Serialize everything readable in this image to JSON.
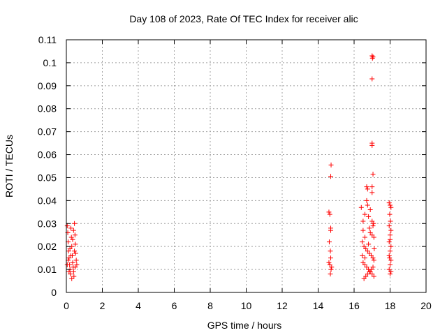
{
  "chart_data": {
    "type": "scatter",
    "title": "Day 108 of 2023, Rate Of TEC Index for receiver alic",
    "xlabel": "GPS time / hours",
    "ylabel": "ROTI / TECUs",
    "xlim": [
      0,
      20
    ],
    "ylim": [
      0,
      0.11
    ],
    "xticks": [
      0,
      2,
      4,
      6,
      8,
      10,
      12,
      14,
      16,
      18,
      20
    ],
    "xtick_labels": [
      "0",
      "2",
      "4",
      "6",
      "8",
      "10",
      "12",
      "14",
      "16",
      "18",
      "20"
    ],
    "yticks": [
      0,
      0.01,
      0.02,
      0.03,
      0.04,
      0.05,
      0.06,
      0.07,
      0.08,
      0.09,
      0.1,
      0.11
    ],
    "ytick_labels": [
      "0",
      "0.01",
      "0.02",
      "0.03",
      "0.04",
      "0.05",
      "0.06",
      "0.07",
      "0.08",
      "0.09",
      "0.1",
      "0.11"
    ],
    "grid": true,
    "marker": "+",
    "color": "#ff0000",
    "points": [
      [
        0.05,
        0.029
      ],
      [
        0.08,
        0.026
      ],
      [
        0.1,
        0.022
      ],
      [
        0.12,
        0.018
      ],
      [
        0.15,
        0.015
      ],
      [
        0.18,
        0.012
      ],
      [
        0.2,
        0.01
      ],
      [
        0.22,
        0.008
      ],
      [
        0.25,
        0.028
      ],
      [
        0.28,
        0.024
      ],
      [
        0.3,
        0.02
      ],
      [
        0.33,
        0.016
      ],
      [
        0.35,
        0.013
      ],
      [
        0.38,
        0.011
      ],
      [
        0.4,
        0.009
      ],
      [
        0.42,
        0.007
      ],
      [
        0.45,
        0.03
      ],
      [
        0.48,
        0.025
      ],
      [
        0.5,
        0.021
      ],
      [
        0.52,
        0.017
      ],
      [
        0.55,
        0.014
      ],
      [
        0.58,
        0.012
      ],
      [
        0.3,
        0.006
      ],
      [
        0.2,
        0.019
      ],
      [
        0.1,
        0.014
      ],
      [
        0.35,
        0.023
      ],
      [
        0.45,
        0.018
      ],
      [
        0.15,
        0.009
      ],
      [
        0.5,
        0.011
      ],
      [
        0.25,
        0.016
      ],
      [
        0.4,
        0.027
      ],
      [
        0.05,
        0.012
      ],
      [
        14.6,
        0.035
      ],
      [
        14.65,
        0.034
      ],
      [
        14.7,
        0.028
      ],
      [
        14.7,
        0.027
      ],
      [
        14.62,
        0.022
      ],
      [
        14.68,
        0.018
      ],
      [
        14.7,
        0.015
      ],
      [
        14.65,
        0.012
      ],
      [
        14.72,
        0.01
      ],
      [
        14.68,
        0.008
      ],
      [
        14.6,
        0.013
      ],
      [
        14.75,
        0.011
      ],
      [
        14.7,
        0.0505
      ],
      [
        14.72,
        0.0555
      ],
      [
        16.4,
        0.037
      ],
      [
        16.5,
        0.031
      ],
      [
        16.5,
        0.027
      ],
      [
        16.6,
        0.024
      ],
      [
        16.7,
        0.046
      ],
      [
        16.75,
        0.045
      ],
      [
        16.7,
        0.04
      ],
      [
        16.75,
        0.038
      ],
      [
        16.6,
        0.034
      ],
      [
        16.8,
        0.033
      ],
      [
        16.9,
        0.036
      ],
      [
        17.0,
        0.031
      ],
      [
        17.05,
        0.029
      ],
      [
        16.85,
        0.028
      ],
      [
        16.9,
        0.026
      ],
      [
        17.0,
        0.025
      ],
      [
        16.45,
        0.022
      ],
      [
        16.55,
        0.02
      ],
      [
        16.65,
        0.019
      ],
      [
        16.75,
        0.018
      ],
      [
        16.85,
        0.017
      ],
      [
        16.95,
        0.016
      ],
      [
        17.05,
        0.015
      ],
      [
        17.1,
        0.014
      ],
      [
        16.5,
        0.013
      ],
      [
        16.6,
        0.012
      ],
      [
        16.7,
        0.011
      ],
      [
        16.8,
        0.01
      ],
      [
        16.9,
        0.009
      ],
      [
        17.0,
        0.008
      ],
      [
        17.1,
        0.007
      ],
      [
        16.55,
        0.006
      ],
      [
        16.65,
        0.007
      ],
      [
        16.75,
        0.008
      ],
      [
        16.85,
        0.009
      ],
      [
        16.95,
        0.01
      ],
      [
        17.05,
        0.011
      ],
      [
        16.45,
        0.016
      ],
      [
        16.6,
        0.015
      ],
      [
        16.8,
        0.021
      ],
      [
        17.0,
        0.103
      ],
      [
        17.05,
        0.1025
      ],
      [
        17.02,
        0.102
      ],
      [
        17.0,
        0.093
      ],
      [
        17.0,
        0.065
      ],
      [
        17.0,
        0.064
      ],
      [
        17.05,
        0.0515
      ],
      [
        17.0,
        0.046
      ],
      [
        17.0,
        0.0435
      ],
      [
        17.08,
        0.03
      ],
      [
        17.1,
        0.024
      ],
      [
        17.12,
        0.019
      ],
      [
        17.95,
        0.039
      ],
      [
        18.0,
        0.038
      ],
      [
        18.05,
        0.037
      ],
      [
        17.95,
        0.029
      ],
      [
        18.05,
        0.027
      ],
      [
        18.0,
        0.025
      ],
      [
        17.95,
        0.022
      ],
      [
        18.05,
        0.02
      ],
      [
        18.0,
        0.018
      ],
      [
        17.95,
        0.016
      ],
      [
        18.05,
        0.014
      ],
      [
        18.0,
        0.012
      ],
      [
        17.95,
        0.01
      ],
      [
        18.05,
        0.009
      ],
      [
        18.0,
        0.008
      ],
      [
        17.98,
        0.034
      ],
      [
        18.02,
        0.031
      ],
      [
        18.0,
        0.023
      ],
      [
        17.97,
        0.015
      ]
    ]
  }
}
